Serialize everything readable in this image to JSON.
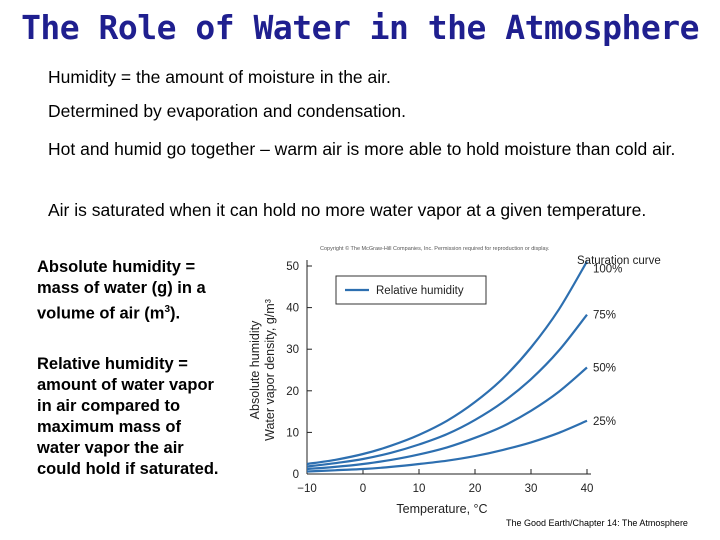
{
  "slide": {
    "title": "The Role of Water in the Atmosphere",
    "bullets": [
      "Humidity = the amount of moisture in the air.",
      "Determined by evaporation and condensation.",
      "Hot and humid go together – warm air is more able to hold moisture than cold air.",
      "Air is saturated when it can hold no more water vapor at a given temperature."
    ],
    "absolute_prefix": "Absolute humidity = mass of water (g) in a volume of air (m",
    "absolute_sup": "3",
    "absolute_suffix": ").",
    "relative_text": "Relative humidity = amount of water vapor in air compared to maximum mass of water vapor the air could hold if saturated.",
    "footer": "The Good Earth/Chapter 14: The Atmosphere"
  },
  "chart_data": {
    "type": "line",
    "copyright": "Copyright © The McGraw-Hill Companies, Inc. Permission required for reproduction or display.",
    "xlabel": "Temperature, °C",
    "ylabel_line1": "Absolute humidity",
    "ylabel_line2": "Water vapor density, g/m³",
    "xlim": [
      -10,
      40
    ],
    "ylim": [
      0,
      50
    ],
    "x_ticks": [
      "−10",
      "0",
      "10",
      "20",
      "30",
      "40"
    ],
    "y_ticks": [
      "0",
      "10",
      "20",
      "30",
      "40",
      "50"
    ],
    "legend": "Relative humidity",
    "legend_position": "top-left",
    "curve_title": "Saturation curve",
    "line_color": "#2d6fb0",
    "x": [
      -10,
      -5,
      0,
      5,
      10,
      15,
      20,
      25,
      30,
      35,
      40
    ],
    "series": [
      {
        "name": "100%",
        "values": [
          2.4,
          3.4,
          4.8,
          6.8,
          9.4,
          12.8,
          17.3,
          23.0,
          30.4,
          39.6,
          51.1
        ]
      },
      {
        "name": "75%",
        "values": [
          1.8,
          2.6,
          3.6,
          5.1,
          7.1,
          9.6,
          13.0,
          17.3,
          22.8,
          29.7,
          38.3
        ]
      },
      {
        "name": "50%",
        "values": [
          1.2,
          1.7,
          2.4,
          3.4,
          4.7,
          6.4,
          8.7,
          11.5,
          15.2,
          19.8,
          25.6
        ]
      },
      {
        "name": "25%",
        "values": [
          0.6,
          0.9,
          1.2,
          1.7,
          2.4,
          3.2,
          4.3,
          5.8,
          7.6,
          9.9,
          12.8
        ]
      }
    ]
  }
}
